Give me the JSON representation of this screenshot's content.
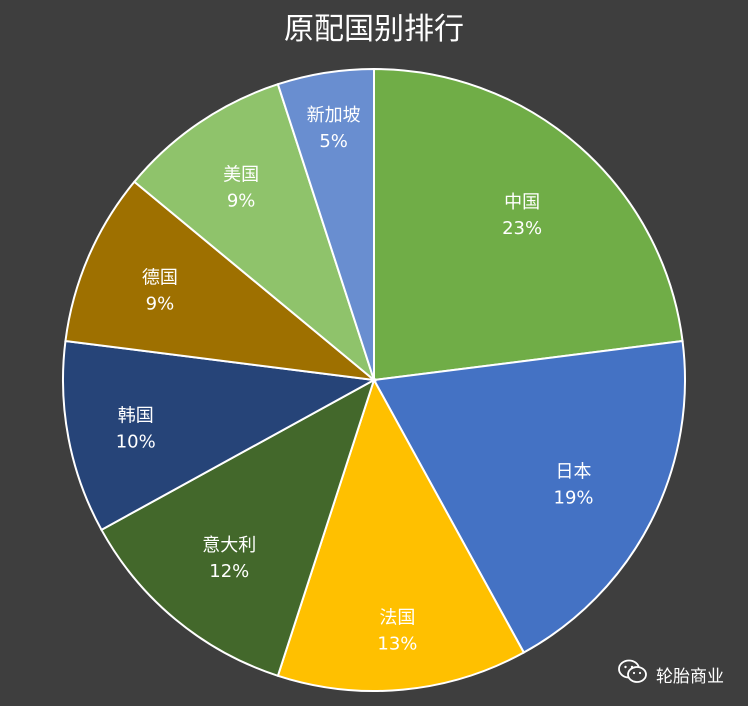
{
  "chart_data": {
    "type": "pie",
    "title": "原配国别排行",
    "categories": [
      "中国",
      "日本",
      "法国",
      "意大利",
      "韩国",
      "德国",
      "美国",
      "新加坡"
    ],
    "values": [
      23,
      19,
      13,
      12,
      10,
      9,
      9,
      5
    ],
    "value_labels": [
      "23%",
      "19%",
      "13%",
      "12%",
      "10%",
      "9%",
      "9%",
      "5%"
    ],
    "colors": [
      "#70ad47",
      "#4472c4",
      "#ffc000",
      "#43682b",
      "#264478",
      "#9e7000",
      "#8fc36b",
      "#698ed0"
    ],
    "start_angle": "12 o'clock",
    "direction": "clockwise",
    "legend": "none"
  },
  "watermark": {
    "icon": "wechat-icon",
    "text": "轮胎商业"
  }
}
